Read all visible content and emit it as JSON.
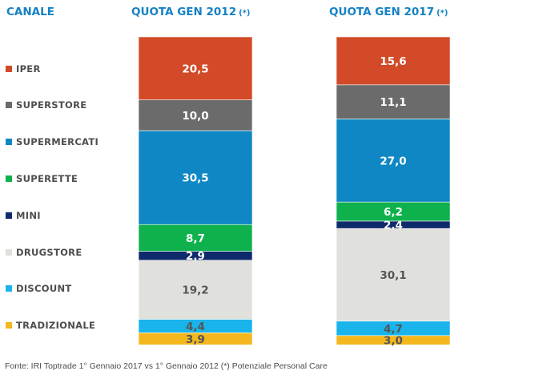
{
  "header": {
    "canale_label": "CANALE",
    "col1_title": "QUOTA GEN 2012",
    "col2_title": "QUOTA GEN 2017",
    "asterisk": "(*)"
  },
  "chart_data": {
    "type": "bar",
    "stacked": true,
    "categories": [
      "QUOTA GEN 2012",
      "QUOTA GEN 2017"
    ],
    "series": [
      {
        "name": "IPER",
        "values": [
          20.5,
          15.6
        ],
        "labels": [
          "20,5",
          "15,6"
        ],
        "color": "#d24a28",
        "text_color": "#ffffff"
      },
      {
        "name": "SUPERSTORE",
        "values": [
          10.0,
          11.1
        ],
        "labels": [
          "10,0",
          "11,1"
        ],
        "color": "#6b6b6b",
        "text_color": "#ffffff"
      },
      {
        "name": "SUPERMERCATI",
        "values": [
          30.5,
          27.0
        ],
        "labels": [
          "30,5",
          "27,0"
        ],
        "color": "#0f87c4",
        "text_color": "#ffffff"
      },
      {
        "name": "SUPERETTE",
        "values": [
          8.7,
          6.2
        ],
        "labels": [
          "8,7",
          "6,2"
        ],
        "color": "#0fb14d",
        "text_color": "#ffffff"
      },
      {
        "name": "MINI",
        "values": [
          2.9,
          2.4
        ],
        "labels": [
          "2,9",
          "2,4"
        ],
        "color": "#0e2a6b",
        "text_color": "#ffffff"
      },
      {
        "name": "DRUGSTORE",
        "values": [
          19.2,
          30.1
        ],
        "labels": [
          "19,2",
          "30,1"
        ],
        "color": "#e0e0dc",
        "text_color": "#555555"
      },
      {
        "name": "DISCOUNT",
        "values": [
          4.4,
          4.7
        ],
        "labels": [
          "4,4",
          "4,7"
        ],
        "color": "#19b4ec",
        "text_color": "#555555"
      },
      {
        "name": "TRADIZIONALE",
        "values": [
          3.9,
          3.0
        ],
        "labels": [
          "3,9",
          "3,0"
        ],
        "color": "#f4b71d",
        "text_color": "#555555"
      }
    ]
  },
  "footer": "Fonte: IRI Toptrade 1° Gennaio 2017 vs 1° Gennaio 2012 (*) Potenziale Personal Care"
}
